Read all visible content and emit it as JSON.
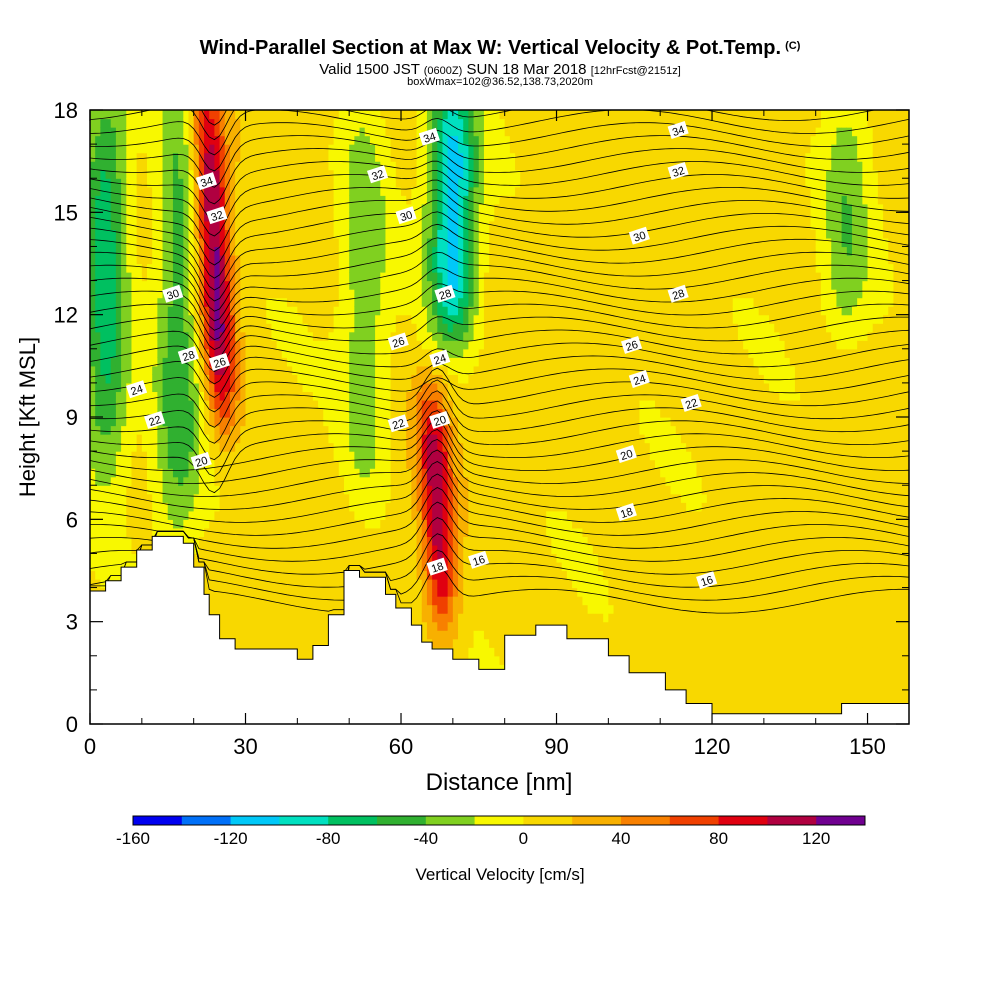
{
  "title": {
    "main": "Wind-Parallel Section at Max W: Vertical Velocity & Pot.Temp.",
    "copyright": "(C)",
    "valid_pre": "Valid 1500 JST",
    "valid_z": "(0600Z)",
    "valid_post": "SUN 18 Mar 2018",
    "forecast": "[12hrFcst@2151z]",
    "box": "boxWmax=102@36.52,138.73,2020m"
  },
  "chart_data": {
    "type": "heatmap",
    "xlabel": "Distance [nm]",
    "ylabel": "Height [Kft MSL]",
    "xlim": [
      0,
      158
    ],
    "ylim": [
      0,
      18
    ],
    "x_ticks": [
      0,
      30,
      60,
      90,
      120,
      150
    ],
    "y_ticks": [
      0,
      3,
      6,
      9,
      12,
      15,
      18
    ],
    "grid": false,
    "colorbar": {
      "label": "Vertical Velocity [cm/s]",
      "placement": "bottom",
      "tick_labels": [
        "-160",
        "-120",
        "-80",
        "-40",
        "0",
        "40",
        "80",
        "120"
      ],
      "tick_values": [
        -160,
        -120,
        -80,
        -40,
        0,
        40,
        80,
        120
      ],
      "bins": [
        -160,
        -140,
        -120,
        -100,
        -80,
        -60,
        -40,
        -20,
        0,
        20,
        40,
        60,
        80,
        100,
        120,
        140
      ],
      "colors": [
        "#0000f0",
        "#0070f8",
        "#00c8f8",
        "#00e0c0",
        "#00c060",
        "#30b030",
        "#80d020",
        "#f8f800",
        "#f8d800",
        "#f8b000",
        "#f88000",
        "#f04000",
        "#e00010",
        "#b00040",
        "#700090"
      ]
    },
    "terrain": {
      "x": [
        0,
        3,
        3,
        6,
        6,
        9,
        9,
        12,
        12,
        18,
        18,
        20,
        20,
        22,
        22,
        23,
        23,
        25,
        25,
        28,
        28,
        40,
        40,
        43,
        43,
        46,
        46,
        49,
        49,
        52,
        52,
        57,
        57,
        59,
        59,
        62,
        62,
        64,
        64,
        66,
        66,
        70,
        70,
        75,
        75,
        80,
        80,
        86,
        86,
        92,
        92,
        100,
        100,
        104,
        104,
        111,
        111,
        115,
        115,
        120,
        120,
        145,
        145,
        158
      ],
      "y": [
        3.9,
        3.9,
        4.2,
        4.2,
        4.6,
        4.6,
        5.1,
        5.1,
        5.5,
        5.5,
        5.3,
        5.3,
        4.6,
        4.6,
        3.8,
        3.8,
        3.2,
        3.2,
        2.5,
        2.5,
        2.2,
        2.2,
        1.9,
        1.9,
        2.3,
        2.3,
        3.2,
        3.2,
        4.5,
        4.5,
        4.3,
        4.3,
        3.8,
        3.8,
        3.4,
        3.4,
        2.9,
        2.9,
        2.4,
        2.4,
        2.2,
        2.2,
        1.9,
        1.9,
        1.6,
        1.6,
        2.6,
        2.6,
        2.9,
        2.9,
        2.5,
        2.5,
        2.0,
        2.0,
        1.5,
        1.5,
        1.0,
        1.0,
        0.6,
        0.6,
        0.3,
        0.3,
        0.6,
        0.6
      ]
    },
    "velocity_features": [
      {
        "kind": "updraft",
        "x": 24,
        "y_range": [
          9.5,
          18
        ],
        "peak": 120
      },
      {
        "kind": "updraft",
        "x": 67,
        "y_range": [
          3.5,
          9
        ],
        "peak": 100
      },
      {
        "kind": "downdraft",
        "x": 70,
        "y_range": [
          12,
          18
        ],
        "peak": -120
      },
      {
        "kind": "downdraft",
        "x": 17,
        "y_range": [
          6,
          18
        ],
        "peak": -60
      },
      {
        "kind": "downdraft",
        "x": 3,
        "y_range": [
          8,
          18
        ],
        "peak": -80
      },
      {
        "kind": "downdraft",
        "x": 53,
        "y_range": [
          7,
          18
        ],
        "peak": -40
      },
      {
        "kind": "downdraft",
        "x": 146,
        "y_range": [
          12,
          18
        ],
        "peak": -40
      }
    ],
    "contour_labels": [
      {
        "text": "34",
        "x": 22.5,
        "y": 15.9
      },
      {
        "text": "32",
        "x": 24.5,
        "y": 14.9
      },
      {
        "text": "30",
        "x": 16,
        "y": 12.6
      },
      {
        "text": "28",
        "x": 19,
        "y": 10.8
      },
      {
        "text": "26",
        "x": 25,
        "y": 10.6
      },
      {
        "text": "24",
        "x": 9,
        "y": 9.8
      },
      {
        "text": "22",
        "x": 12.5,
        "y": 8.9
      },
      {
        "text": "20",
        "x": 21.5,
        "y": 7.7
      },
      {
        "text": "34",
        "x": 65.5,
        "y": 17.2
      },
      {
        "text": "32",
        "x": 55.5,
        "y": 16.1
      },
      {
        "text": "30",
        "x": 61,
        "y": 14.9
      },
      {
        "text": "28",
        "x": 68.5,
        "y": 12.6
      },
      {
        "text": "26",
        "x": 59.5,
        "y": 11.2
      },
      {
        "text": "24",
        "x": 67.5,
        "y": 10.7
      },
      {
        "text": "22",
        "x": 59.5,
        "y": 8.8
      },
      {
        "text": "20",
        "x": 67.5,
        "y": 8.9
      },
      {
        "text": "18",
        "x": 67,
        "y": 4.6
      },
      {
        "text": "16",
        "x": 75,
        "y": 4.8
      },
      {
        "text": "34",
        "x": 113.5,
        "y": 17.4
      },
      {
        "text": "32",
        "x": 113.5,
        "y": 16.2
      },
      {
        "text": "30",
        "x": 106,
        "y": 14.3
      },
      {
        "text": "28",
        "x": 113.5,
        "y": 12.6
      },
      {
        "text": "26",
        "x": 104.5,
        "y": 11.1
      },
      {
        "text": "24",
        "x": 106,
        "y": 10.1
      },
      {
        "text": "22",
        "x": 116,
        "y": 9.4
      },
      {
        "text": "20",
        "x": 103.5,
        "y": 7.9
      },
      {
        "text": "18",
        "x": 103.5,
        "y": 6.2
      },
      {
        "text": "16",
        "x": 119,
        "y": 4.2
      }
    ]
  }
}
